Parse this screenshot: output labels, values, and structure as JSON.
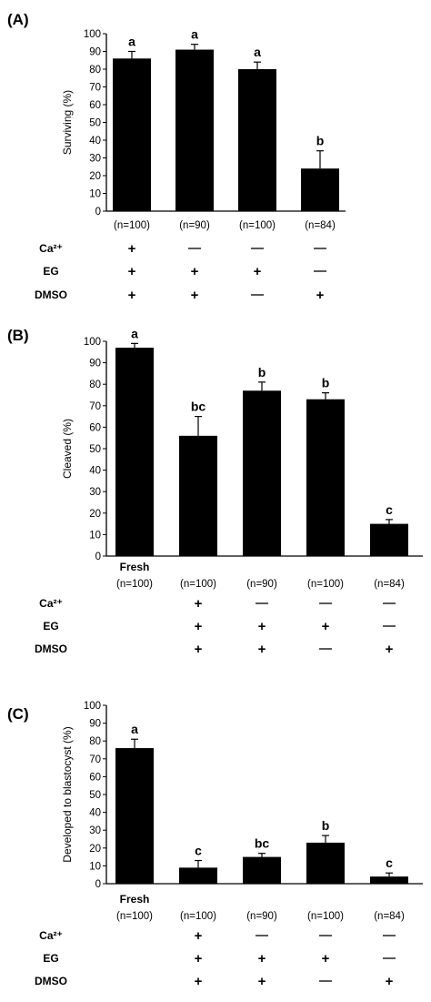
{
  "chart_data": [
    {
      "type": "bar",
      "panel_label": "(A)",
      "ylabel": "Surviving (%)",
      "ylim": [
        0,
        100
      ],
      "yticks": [
        0,
        10,
        20,
        30,
        40,
        50,
        60,
        70,
        80,
        90,
        100
      ],
      "categories": [
        "(n=100)",
        "(n=90)",
        "(n=100)",
        "(n=84)"
      ],
      "category_prefix": [
        "",
        "",
        "",
        ""
      ],
      "values": [
        86,
        91,
        80,
        24
      ],
      "errors": [
        4,
        3,
        4,
        10
      ],
      "letters": [
        "a",
        "a",
        "a",
        "b"
      ],
      "treatments": [
        {
          "name": "Ca²⁺",
          "marks": [
            "+",
            "—",
            "—",
            "—"
          ]
        },
        {
          "name": "EG",
          "marks": [
            "+",
            "+",
            "+",
            "—"
          ]
        },
        {
          "name": "DMSO",
          "marks": [
            "+",
            "+",
            "—",
            "+"
          ]
        }
      ]
    },
    {
      "type": "bar",
      "panel_label": "(B)",
      "ylabel": "Cleaved (%)",
      "ylim": [
        0,
        100
      ],
      "yticks": [
        0,
        10,
        20,
        30,
        40,
        50,
        60,
        70,
        80,
        90,
        100
      ],
      "categories": [
        "(n=100)",
        "(n=100)",
        "(n=90)",
        "(n=100)",
        "(n=84)"
      ],
      "category_prefix": [
        "Fresh",
        "",
        "",
        "",
        ""
      ],
      "values": [
        97,
        56,
        77,
        73,
        15
      ],
      "errors": [
        2,
        9,
        4,
        3,
        2
      ],
      "letters": [
        "a",
        "bc",
        "b",
        "b",
        "c"
      ],
      "treatments": [
        {
          "name": "Ca²⁺",
          "marks": [
            "",
            "+",
            "—",
            "—",
            "—"
          ]
        },
        {
          "name": "EG",
          "marks": [
            "",
            "+",
            "+",
            "+",
            "—"
          ]
        },
        {
          "name": "DMSO",
          "marks": [
            "",
            "+",
            "+",
            "—",
            "+"
          ]
        }
      ]
    },
    {
      "type": "bar",
      "panel_label": "(C)",
      "ylabel": "Developed to blastocyst (%)",
      "ylim": [
        0,
        100
      ],
      "yticks": [
        0,
        10,
        20,
        30,
        40,
        50,
        60,
        70,
        80,
        90,
        100
      ],
      "categories": [
        "(n=100)",
        "(n=100)",
        "(n=90)",
        "(n=100)",
        "(n=84)"
      ],
      "category_prefix": [
        "Fresh",
        "",
        "",
        "",
        ""
      ],
      "values": [
        76,
        9,
        15,
        23,
        4
      ],
      "errors": [
        5,
        4,
        2,
        4,
        2
      ],
      "letters": [
        "a",
        "c",
        "bc",
        "b",
        "c"
      ],
      "treatments": [
        {
          "name": "Ca²⁺",
          "marks": [
            "",
            "+",
            "—",
            "—",
            "—"
          ]
        },
        {
          "name": "EG",
          "marks": [
            "",
            "+",
            "+",
            "+",
            "—"
          ]
        },
        {
          "name": "DMSO",
          "marks": [
            "",
            "+",
            "+",
            "—",
            "+"
          ]
        }
      ]
    }
  ]
}
